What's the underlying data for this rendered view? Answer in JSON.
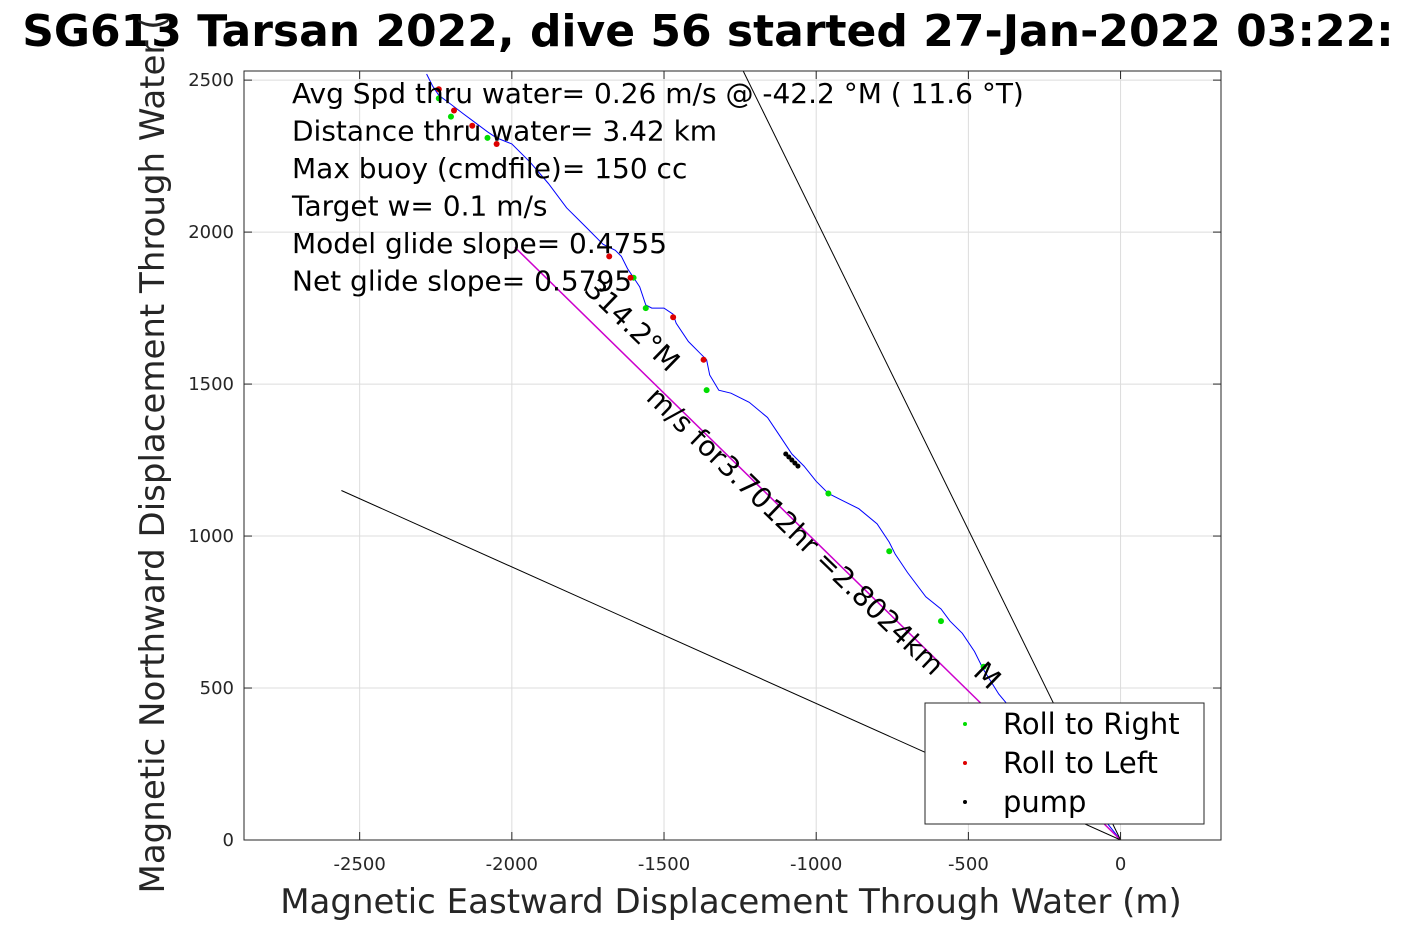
{
  "chart_data": {
    "type": "line",
    "title": "SG613 Tarsan 2022, dive 56 started 27-Jan-2022 03:22:",
    "xlabel": "Magnetic Eastward Displacement Through Water (m)",
    "ylabel": "Magnetic Northward Displacement Through Water (",
    "xlim": [
      -2880,
      330
    ],
    "ylim": [
      0,
      2530
    ],
    "xticks": [
      -2500,
      -2000,
      -1500,
      -1000,
      -500,
      0
    ],
    "yticks": [
      0,
      500,
      1000,
      1500,
      2000,
      2500
    ],
    "grid": true,
    "annotations": [
      "Avg Spd thru water=  0.26 m/s @ -42.2 °M ( 11.6 °T)",
      "Distance thru water=  3.42 km",
      "Max buoy (cmdfile)= 150 cc",
      "Target w= 0.1 m/s",
      "Model glide slope= 0.4755",
      "Net glide slope= 0.5795"
    ],
    "rotated_label": "314.2°M",
    "rotated_label2": "m/s for3.7012hr =2.8024km",
    "rotated_label3": "M",
    "legend": {
      "placement": "bottom-right",
      "entries": [
        {
          "label": "Roll to Right",
          "color": "#00dd00"
        },
        {
          "label": "Roll to Left",
          "color": "#dd0000"
        },
        {
          "label": "pump",
          "color": "#000000"
        }
      ]
    },
    "series": [
      {
        "role": "track",
        "color": "#0000ff",
        "x": [
          0,
          -80,
          -180,
          -300,
          -400,
          -450,
          -480,
          -520,
          -560,
          -590,
          -640,
          -700,
          -740,
          -760,
          -800,
          -860,
          -920,
          -960,
          -1000,
          -1040,
          -1080,
          -1120,
          -1160,
          -1220,
          -1280,
          -1320,
          -1350,
          -1360,
          -1380,
          -1420,
          -1460,
          -1470,
          -1500,
          -1540,
          -1560,
          -1580,
          -1600,
          -1620,
          -1640,
          -1660,
          -1700,
          -1760,
          -1820,
          -1880,
          -1940,
          -2000,
          -2050,
          -2080,
          -2120,
          -2160,
          -2200,
          -2240,
          -2260,
          -2280
        ],
        "y": [
          0,
          100,
          220,
          360,
          480,
          560,
          620,
          680,
          720,
          760,
          800,
          880,
          940,
          980,
          1040,
          1090,
          1120,
          1140,
          1180,
          1230,
          1270,
          1330,
          1390,
          1440,
          1470,
          1480,
          1530,
          1580,
          1600,
          1640,
          1700,
          1730,
          1750,
          1750,
          1760,
          1820,
          1850,
          1880,
          1920,
          1940,
          1960,
          2020,
          2080,
          2160,
          2230,
          2290,
          2310,
          2330,
          2360,
          2390,
          2420,
          2450,
          2480,
          2520
        ]
      },
      {
        "role": "straight-line",
        "color": "#cc00cc",
        "x": [
          0,
          -1990
        ],
        "y": [
          0,
          1950
        ]
      },
      {
        "role": "line-black-1",
        "color": "#000000",
        "x": [
          0,
          -1240
        ],
        "y": [
          0,
          2530
        ]
      },
      {
        "role": "line-black-2",
        "color": "#000000",
        "x": [
          0,
          -2560
        ],
        "y": [
          0,
          1150
        ]
      }
    ],
    "markers": {
      "roll_right": {
        "x": [
          -450,
          -590,
          -760,
          -960,
          -1360,
          -1560,
          -1600,
          -2080,
          -2200,
          -2240
        ],
        "y": [
          570,
          720,
          950,
          1140,
          1480,
          1750,
          1850,
          2310,
          2380,
          2440
        ]
      },
      "roll_left": {
        "x": [
          -1370,
          -1470,
          -1610,
          -1680,
          -2050,
          -2130,
          -2190,
          -2240
        ],
        "y": [
          1580,
          1720,
          1850,
          1920,
          2290,
          2350,
          2400,
          2470
        ]
      },
      "pump": {
        "x": [
          -1100,
          -1090,
          -1080,
          -1070,
          -1060
        ],
        "y": [
          1270,
          1260,
          1250,
          1240,
          1230
        ]
      }
    }
  }
}
